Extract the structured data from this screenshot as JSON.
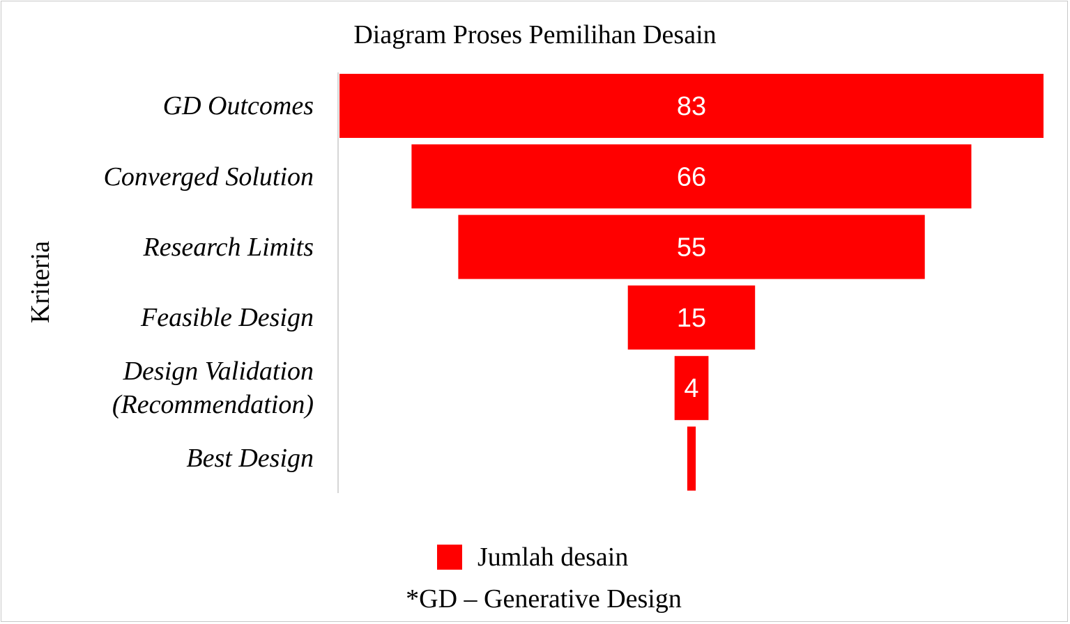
{
  "chart_data": {
    "type": "bar",
    "orientation": "horizontal-funnel",
    "title": "Diagram Proses Pemilihan Desain",
    "ylabel": "Kriteria",
    "xlabel": "",
    "categories": [
      "GD Outcomes",
      "Converged Solution",
      "Research Limits",
      "Feasible Design",
      "Design Validation\n(Recommendation)",
      "Best Design"
    ],
    "series": [
      {
        "name": "Jumlah desain",
        "values": [
          83,
          66,
          55,
          15,
          4,
          1
        ],
        "color": "#ff0000"
      }
    ],
    "data_labels": [
      "83",
      "66",
      "55",
      "15",
      "4",
      ""
    ],
    "legend_position": "bottom",
    "grid": false,
    "note": "*GD – Generative Design"
  }
}
